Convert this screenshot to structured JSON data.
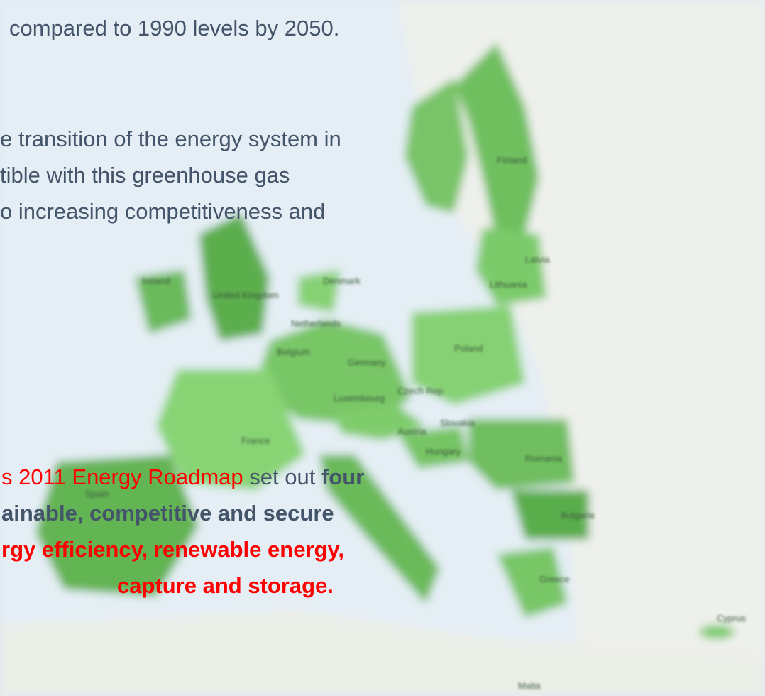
{
  "slide": {
    "lines": [
      {
        "runs": [
          "compared to 1990 levels by 2050."
        ]
      },
      {
        "runs": [
          "e transition of the energy system in"
        ]
      },
      {
        "runs": [
          "tible with this greenhouse gas"
        ]
      },
      {
        "runs": [
          "o increasing competitiveness and"
        ]
      },
      {
        "runs": [
          "s 2011 Energy Roadmap",
          " set out ",
          "four"
        ]
      },
      {
        "runs": [
          "ainable, competitive and secure"
        ]
      },
      {
        "runs": [
          "rgy efficiency, renewable energy,"
        ]
      },
      {
        "runs": [
          "capture and storage."
        ]
      }
    ],
    "map_labels": [
      "Finland",
      "Latvia",
      "Lithuania",
      "Ireland",
      "United Kingdom",
      "Denmark",
      "Netherlands",
      "Belgium",
      "Germany",
      "Poland",
      "Luxembourg",
      "Czech Rep.",
      "Slovakia",
      "France",
      "Austria",
      "Hungary",
      "Romania",
      "Spain",
      "Bulgaria",
      "Greece",
      "Cyprus",
      "Malta"
    ]
  }
}
